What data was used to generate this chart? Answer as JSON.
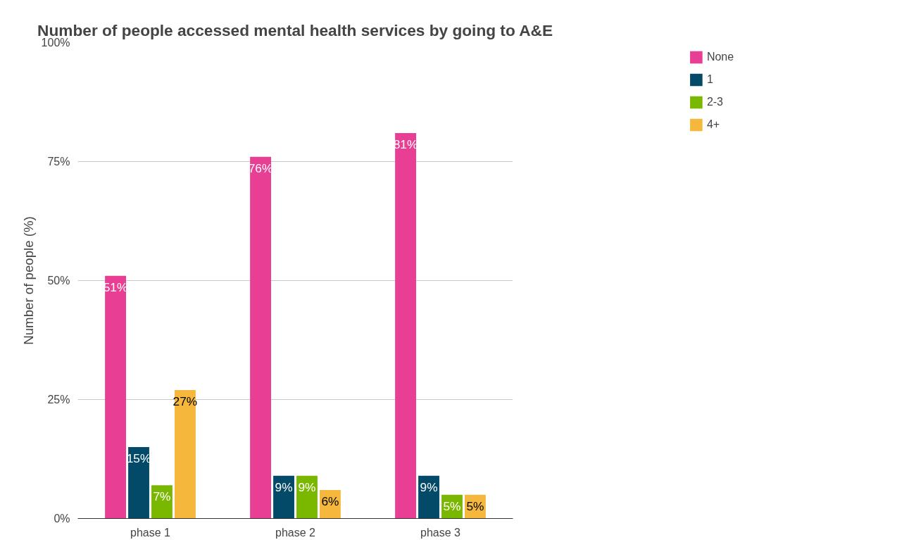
{
  "chart_data": {
    "type": "bar",
    "title": "Number of people accessed mental health services by going to A&E",
    "ylabel": "Number of people (%)",
    "categories": [
      "phase 1",
      "phase 2",
      "phase 3"
    ],
    "series": [
      {
        "name": "None",
        "color": "#e83e94",
        "values": [
          51,
          76,
          81
        ],
        "value_labels": [
          "51%",
          "76%",
          "81%"
        ]
      },
      {
        "name": "1",
        "color": "#034a69",
        "values": [
          15,
          9,
          9
        ],
        "value_labels": [
          "15%",
          "9%",
          "9%"
        ]
      },
      {
        "name": "2-3",
        "color": "#7ab800",
        "values": [
          7,
          9,
          5
        ],
        "value_labels": [
          "7%",
          "9%",
          "5%"
        ]
      },
      {
        "name": "4+",
        "color": "#f5b83d",
        "values": [
          27,
          6,
          5
        ],
        "value_labels": [
          "27%",
          "6%",
          "5%"
        ]
      }
    ],
    "ylim": [
      0,
      100
    ],
    "yticks": [
      {
        "value": 0,
        "label": "0%"
      },
      {
        "value": 25,
        "label": "25%"
      },
      {
        "value": 50,
        "label": "50%"
      },
      {
        "value": 75,
        "label": "75%"
      },
      {
        "value": 100,
        "label": "100%"
      }
    ],
    "grid": "y",
    "legend": "top right"
  }
}
